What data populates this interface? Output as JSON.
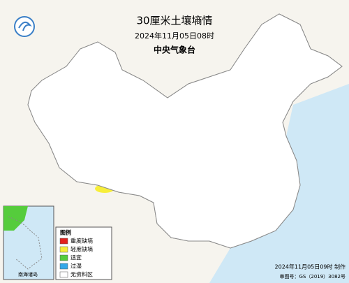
{
  "header": {
    "title": "30厘米土壤墒情",
    "time": "2024年11月05日08时",
    "agency": "中央气象台"
  },
  "legend": {
    "title": "图例",
    "items": [
      {
        "label": "重度缺墒",
        "color": "#e3221e"
      },
      {
        "label": "轻度缺墒",
        "color": "#f7ee3a"
      },
      {
        "label": "适宜",
        "color": "#55cc3c"
      },
      {
        "label": "过湿",
        "color": "#35a8e8"
      },
      {
        "label": "无资料区",
        "color": "#ffffff"
      }
    ]
  },
  "inset": {
    "label": "南海诸岛"
  },
  "footer": {
    "made": "2024年11月05日09时 制作",
    "approval": "审图号：GS（2019）3082号"
  }
}
